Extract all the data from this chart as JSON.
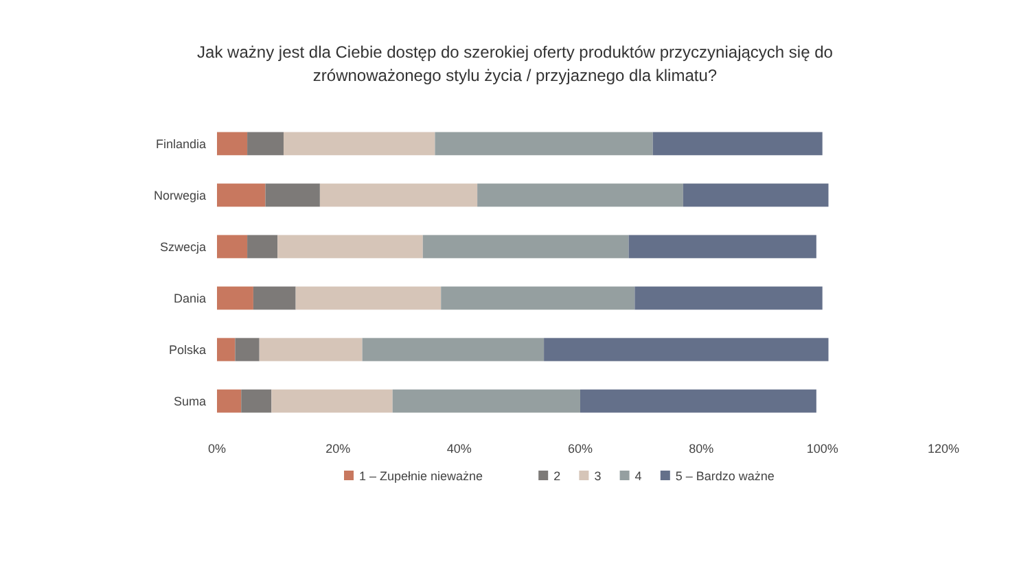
{
  "chart_data": {
    "type": "bar",
    "orientation": "horizontal",
    "stacked": true,
    "title": "Jak ważny jest dla Ciebie dostęp do szerokiej oferty produktów przyczyniających się do zrównoważonego stylu życia / przyjaznego dla klimatu?",
    "categories": [
      "Finlandia",
      "Norwegia",
      "Szwecja",
      "Dania",
      "Polska",
      "Suma"
    ],
    "series": [
      {
        "name": "1 – Zupełnie nieważne",
        "color": "#c8785f",
        "values": [
          5,
          8,
          5,
          6,
          3,
          4
        ]
      },
      {
        "name": "2",
        "color": "#7d7a78",
        "values": [
          6,
          9,
          5,
          7,
          4,
          5
        ]
      },
      {
        "name": "3",
        "color": "#d6c5b8",
        "values": [
          25,
          26,
          24,
          24,
          17,
          20
        ]
      },
      {
        "name": "4",
        "color": "#959fa0",
        "values": [
          36,
          34,
          34,
          32,
          30,
          31
        ]
      },
      {
        "name": "5 – Bardzo ważne",
        "color": "#64708a",
        "values": [
          28,
          24,
          31,
          31,
          47,
          39
        ]
      }
    ],
    "xlim": [
      0,
      120
    ],
    "xticks": [
      {
        "value": 0,
        "label": "0%"
      },
      {
        "value": 20,
        "label": "20%"
      },
      {
        "value": 40,
        "label": "40%"
      },
      {
        "value": 60,
        "label": "60%"
      },
      {
        "value": 80,
        "label": "80%"
      },
      {
        "value": 100,
        "label": "100%"
      },
      {
        "value": 120,
        "label": "120%"
      }
    ],
    "grid": false,
    "legend": "bottom"
  }
}
